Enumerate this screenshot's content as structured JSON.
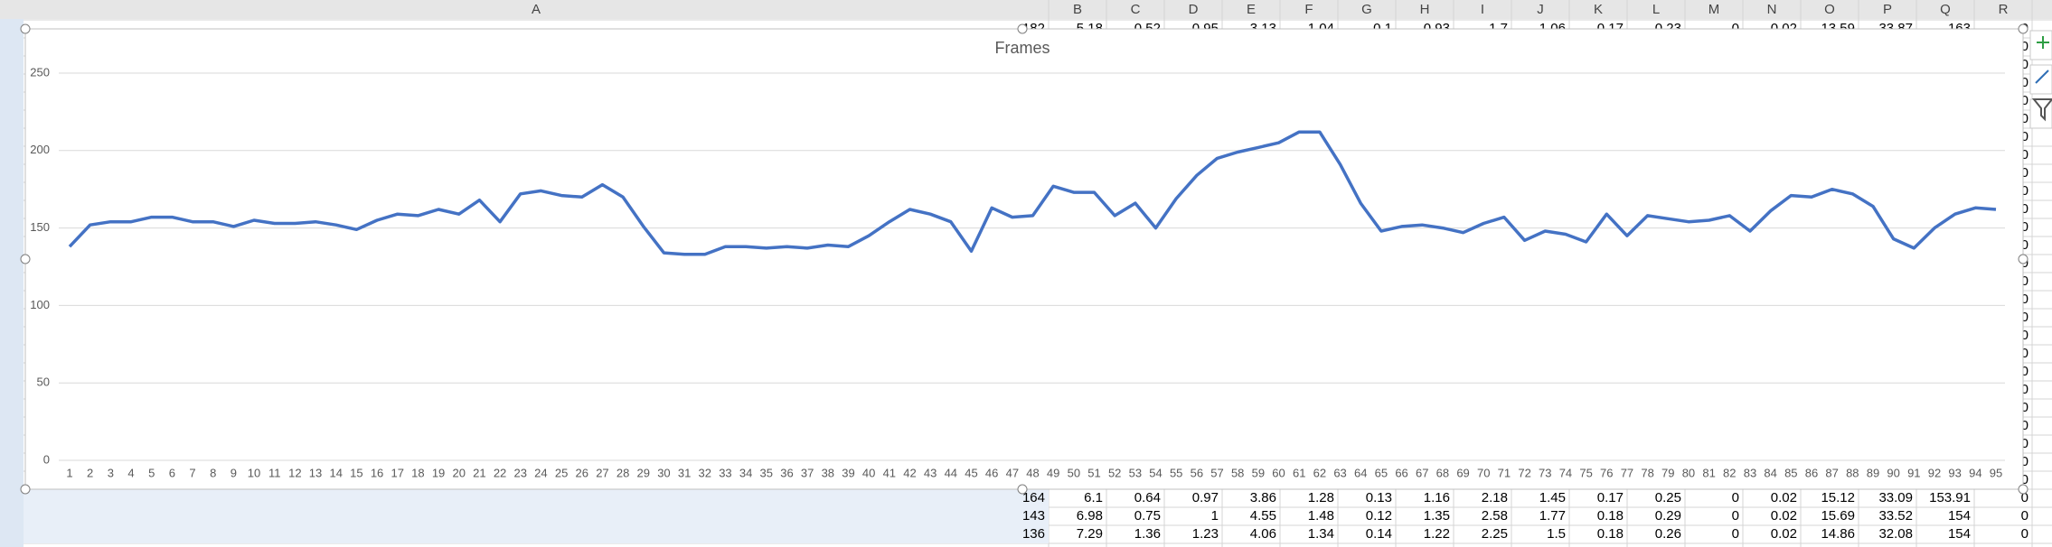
{
  "chart_data": {
    "type": "line",
    "title": "Frames",
    "categories": [
      "1",
      "2",
      "3",
      "4",
      "5",
      "6",
      "7",
      "8",
      "9",
      "10",
      "11",
      "12",
      "13",
      "14",
      "15",
      "16",
      "17",
      "18",
      "19",
      "20",
      "21",
      "22",
      "23",
      "24",
      "25",
      "26",
      "27",
      "28",
      "29",
      "30",
      "31",
      "32",
      "33",
      "34",
      "35",
      "36",
      "37",
      "38",
      "39",
      "40",
      "41",
      "42",
      "43",
      "44",
      "45",
      "46",
      "47",
      "48",
      "49",
      "50",
      "51",
      "52",
      "53",
      "54",
      "55",
      "56",
      "57",
      "58",
      "59",
      "60",
      "61",
      "62",
      "63",
      "64",
      "65",
      "66",
      "67",
      "68",
      "69",
      "70",
      "71",
      "72",
      "73",
      "74",
      "75",
      "76",
      "77",
      "78",
      "79",
      "80",
      "81",
      "82",
      "83",
      "84",
      "85",
      "86",
      "87",
      "88",
      "89",
      "90",
      "91",
      "92",
      "93",
      "94",
      "95"
    ],
    "values": [
      138,
      152,
      154,
      154,
      157,
      157,
      154,
      154,
      151,
      155,
      153,
      153,
      154,
      152,
      149,
      155,
      159,
      158,
      162,
      159,
      168,
      154,
      172,
      174,
      171,
      170,
      178,
      170,
      151,
      134,
      133,
      133,
      138,
      138,
      137,
      138,
      137,
      139,
      138,
      145,
      154,
      162,
      159,
      154,
      135,
      163,
      157,
      158,
      177,
      173,
      173,
      158,
      166,
      150,
      169,
      184,
      195,
      199,
      202,
      205,
      212,
      212,
      191,
      166,
      148,
      151,
      152,
      150,
      147,
      153,
      157,
      142,
      148,
      146,
      141,
      159,
      145,
      158,
      156,
      154,
      155,
      158,
      148,
      161,
      171,
      170,
      175,
      172,
      164,
      143,
      137,
      150,
      159,
      163,
      162
    ],
    "color": "#4472c4",
    "ylim": [
      0,
      250
    ],
    "yticks": [
      0,
      50,
      100,
      150,
      200,
      250
    ],
    "grid": true
  },
  "sheet": {
    "columns": [
      "A",
      "B",
      "C",
      "D",
      "E",
      "F",
      "G",
      "H",
      "I",
      "J",
      "K",
      "L",
      "M",
      "N",
      "O",
      "P",
      "Q",
      "R"
    ],
    "top_row": [
      "182",
      "5.18",
      "0.52",
      "0.95",
      "3.13",
      "1.04",
      "0.1",
      "0.93",
      "1.7",
      "1.06",
      "0.17",
      "0.23",
      "0",
      "0.02",
      "13.59",
      "33.87",
      "163",
      "0"
    ],
    "column_r_visible": [
      "0",
      "0",
      "0",
      "0",
      "0",
      "0",
      "0",
      "0",
      "0",
      "0",
      "0",
      "0",
      "0",
      "0",
      "0",
      "0",
      "0",
      "0",
      "0",
      "0",
      "0",
      "0",
      "0",
      "0",
      "0"
    ],
    "bottom_rows": [
      [
        "164",
        "6.1",
        "0.64",
        "0.97",
        "3.86",
        "1.28",
        "0.13",
        "1.16",
        "2.18",
        "1.45",
        "0.17",
        "0.25",
        "0",
        "0.02",
        "15.12",
        "33.09",
        "153.91",
        "0"
      ],
      [
        "143",
        "6.98",
        "0.75",
        "1",
        "4.55",
        "1.48",
        "0.12",
        "1.35",
        "2.58",
        "1.77",
        "0.18",
        "0.29",
        "0",
        "0.02",
        "15.69",
        "33.52",
        "154",
        "0"
      ],
      [
        "136",
        "7.29",
        "1.36",
        "1.23",
        "4.06",
        "1.34",
        "0.14",
        "1.22",
        "2.25",
        "1.5",
        "0.18",
        "0.26",
        "0",
        "0.02",
        "14.86",
        "32.08",
        "154",
        "0"
      ]
    ]
  }
}
